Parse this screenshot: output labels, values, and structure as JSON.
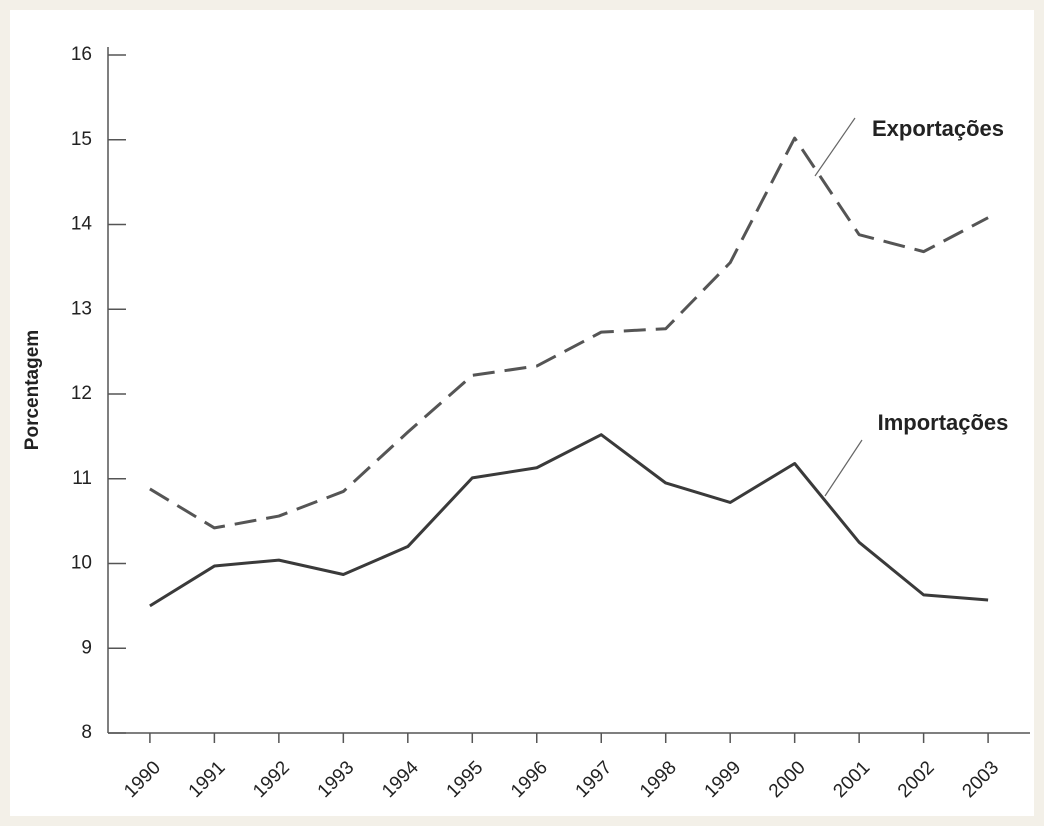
{
  "chart_data": {
    "type": "line",
    "ylabel": "Porcentagem",
    "x": [
      1990,
      1991,
      1992,
      1993,
      1994,
      1995,
      1996,
      1997,
      1998,
      1999,
      2000,
      2001,
      2002,
      2003
    ],
    "series": [
      {
        "name": "Exportações",
        "color": "#555555",
        "dashed": true,
        "values": [
          10.88,
          10.42,
          10.56,
          10.85,
          11.55,
          12.22,
          12.33,
          12.73,
          12.77,
          13.55,
          15.02,
          13.88,
          13.68,
          14.08
        ]
      },
      {
        "name": "Importações",
        "color": "#3a3a3a",
        "dashed": false,
        "values": [
          9.5,
          9.97,
          10.04,
          9.87,
          10.2,
          11.01,
          11.13,
          11.52,
          10.95,
          10.72,
          11.18,
          10.25,
          9.63,
          9.57
        ]
      }
    ],
    "xlim": [
      1989.35,
      2003.65
    ],
    "xticks": [
      1990,
      1991,
      1992,
      1993,
      1994,
      1995,
      1996,
      1997,
      1998,
      1999,
      2000,
      2001,
      2002,
      2003
    ],
    "ylim": [
      8,
      16
    ],
    "yticks": [
      8,
      9,
      10,
      11,
      12,
      13,
      14,
      15,
      16
    ]
  }
}
